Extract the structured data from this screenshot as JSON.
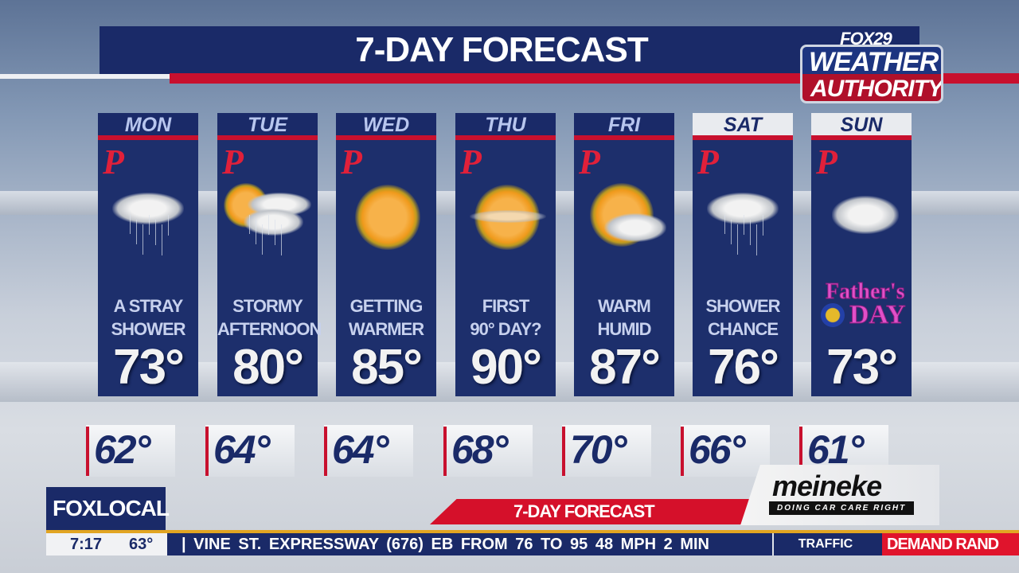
{
  "header": {
    "title": "7-DAY FORECAST"
  },
  "logo": {
    "line1": "FOX29",
    "line2": "WEATHER",
    "line3": "AUTHORITY"
  },
  "days": [
    {
      "day": "MON",
      "desc1": "A STRAY",
      "desc2": "SHOWER",
      "high": "73°",
      "low": "62°",
      "icon": "rain-cloud-icon"
    },
    {
      "day": "TUE",
      "desc1": "STORMY",
      "desc2": "AFTERNOON",
      "high": "80°",
      "low": "64°",
      "icon": "partly-cloudy-rain-icon"
    },
    {
      "day": "WED",
      "desc1": "GETTING",
      "desc2": "WARMER",
      "high": "85°",
      "low": "64°",
      "icon": "sun-icon"
    },
    {
      "day": "THU",
      "desc1": "FIRST",
      "desc2": "90° DAY?",
      "high": "90°",
      "low": "68°",
      "icon": "hazy-sun-icon"
    },
    {
      "day": "FRI",
      "desc1": "WARM",
      "desc2": "HUMID",
      "high": "87°",
      "low": "70°",
      "icon": "sun-cloud-icon"
    },
    {
      "day": "SAT",
      "desc1": "SHOWER",
      "desc2": "CHANCE",
      "high": "76°",
      "low": "66°",
      "icon": "rain-cloud-icon"
    },
    {
      "day": "SUN",
      "desc1": "",
      "desc2": "",
      "high": "73°",
      "low": "61°",
      "icon": "cloud-icon",
      "special": "Father's DAY"
    }
  ],
  "team_logo": "P",
  "lower_third": {
    "label": "7-DAY FORECAST"
  },
  "sponsor": {
    "name": "meineke",
    "tagline": "DOING CAR CARE RIGHT"
  },
  "station": {
    "brand": "FOXLOCAL"
  },
  "ticker": {
    "time": "7:17",
    "temp": "63°",
    "text": "| VINE ST. EXPRESSWAY (676) EB FROM 76 TO 95 48 MPH   2 MIN",
    "category": "TRAFFIC",
    "segment": "DEMAND   RAND"
  },
  "colors": {
    "navy": "#1a2a68",
    "red": "#c8102e",
    "gold": "#e2a522"
  }
}
